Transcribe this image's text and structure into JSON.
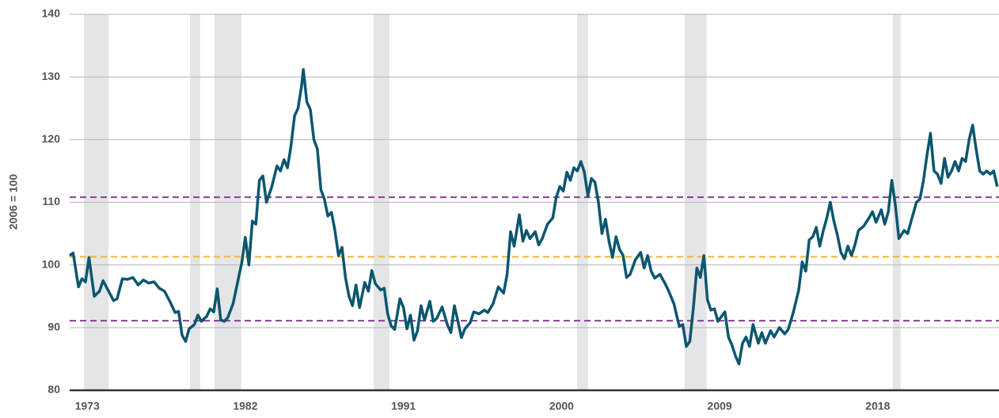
{
  "chart_data": {
    "type": "line",
    "ylabel": "2006 = 100",
    "xlim": [
      1972,
      2024.9
    ],
    "ylim": [
      80,
      140
    ],
    "yticks": [
      80,
      90,
      100,
      110,
      120,
      130,
      140
    ],
    "xticks": [
      1973,
      1982,
      1991,
      2000,
      2009,
      2018
    ],
    "grid": true,
    "shaded_ranges": [
      [
        1972.81,
        1974.21
      ],
      [
        1978.85,
        1979.43
      ],
      [
        1980.24,
        1981.77
      ],
      [
        1989.3,
        1990.2
      ],
      [
        2000.88,
        2001.51
      ],
      [
        2007.0,
        2008.26
      ],
      [
        2018.85,
        2019.3
      ]
    ],
    "shade_color": "#e4e5e7",
    "reference_lines": [
      {
        "value": 110.8,
        "color": "#8a3d96"
      },
      {
        "value": 101.3,
        "color": "#f2b533"
      },
      {
        "value": 91.1,
        "color": "#8a3d96"
      }
    ],
    "x": [
      1972.0,
      1972.2,
      1972.5,
      1972.7,
      1972.9,
      1973.1,
      1973.4,
      1973.7,
      1973.9,
      1974.2,
      1974.5,
      1974.7,
      1975.0,
      1975.3,
      1975.6,
      1975.9,
      1976.2,
      1976.5,
      1976.8,
      1977.1,
      1977.4,
      1977.7,
      1978.0,
      1978.2,
      1978.4,
      1978.6,
      1978.8,
      1979.1,
      1979.3,
      1979.5,
      1979.8,
      1980.0,
      1980.2,
      1980.4,
      1980.6,
      1980.8,
      1981.0,
      1981.3,
      1981.6,
      1981.8,
      1982.0,
      1982.2,
      1982.4,
      1982.6,
      1982.8,
      1983.0,
      1983.2,
      1983.5,
      1983.8,
      1984.0,
      1984.2,
      1984.4,
      1984.6,
      1984.8,
      1985.0,
      1985.2,
      1985.3,
      1985.5,
      1985.7,
      1985.9,
      1986.1,
      1986.3,
      1986.5,
      1986.7,
      1986.9,
      1987.1,
      1987.3,
      1987.5,
      1987.7,
      1987.9,
      1988.1,
      1988.3,
      1988.5,
      1988.8,
      1989.0,
      1989.2,
      1989.4,
      1989.7,
      1989.9,
      1990.1,
      1990.3,
      1990.5,
      1990.8,
      1991.0,
      1991.2,
      1991.4,
      1991.6,
      1991.8,
      1992.0,
      1992.2,
      1992.5,
      1992.7,
      1992.9,
      1993.2,
      1993.5,
      1993.7,
      1993.9,
      1994.1,
      1994.3,
      1994.5,
      1994.8,
      1995.0,
      1995.3,
      1995.6,
      1995.8,
      1996.1,
      1996.4,
      1996.7,
      1996.9,
      1997.1,
      1997.3,
      1997.6,
      1997.8,
      1998.0,
      1998.2,
      1998.5,
      1998.7,
      1998.9,
      1999.2,
      1999.5,
      1999.7,
      1999.9,
      2000.1,
      2000.3,
      2000.5,
      2000.7,
      2000.9,
      2001.1,
      2001.3,
      2001.5,
      2001.7,
      2001.9,
      2002.1,
      2002.3,
      2002.5,
      2002.7,
      2002.9,
      2003.1,
      2003.3,
      2003.5,
      2003.7,
      2003.9,
      2004.2,
      2004.5,
      2004.7,
      2004.9,
      2005.1,
      2005.3,
      2005.6,
      2005.9,
      2006.1,
      2006.4,
      2006.7,
      2006.9,
      2007.1,
      2007.3,
      2007.5,
      2007.7,
      2007.9,
      2008.1,
      2008.3,
      2008.5,
      2008.7,
      2008.9,
      2009.1,
      2009.3,
      2009.5,
      2009.7,
      2009.9,
      2010.1,
      2010.3,
      2010.5,
      2010.7,
      2010.9,
      2011.2,
      2011.4,
      2011.6,
      2011.9,
      2012.1,
      2012.4,
      2012.7,
      2012.9,
      2013.2,
      2013.5,
      2013.7,
      2013.9,
      2014.1,
      2014.3,
      2014.5,
      2014.7,
      2014.9,
      2015.1,
      2015.3,
      2015.5,
      2015.7,
      2015.9,
      2016.1,
      2016.3,
      2016.5,
      2016.7,
      2016.9,
      2017.2,
      2017.5,
      2017.7,
      2017.9,
      2018.2,
      2018.4,
      2018.6,
      2018.8,
      2019.0,
      2019.2,
      2019.5,
      2019.7,
      2019.9,
      2020.2,
      2020.4,
      2020.6,
      2020.8,
      2021.0,
      2021.2,
      2021.4,
      2021.6,
      2021.8,
      2022.0,
      2022.2,
      2022.4,
      2022.6,
      2022.8,
      2023.0,
      2023.2,
      2023.4,
      2023.6,
      2023.8,
      2024.0,
      2024.2,
      2024.4,
      2024.6,
      2024.8
    ],
    "series": [
      {
        "color": "#0b566f",
        "values": [
          101.5,
          101.9,
          96.5,
          97.8,
          97.3,
          101.2,
          95.0,
          95.8,
          97.5,
          95.9,
          94.3,
          94.6,
          97.8,
          97.7,
          98.0,
          96.8,
          97.6,
          97.1,
          97.3,
          96.3,
          95.8,
          94.2,
          92.4,
          92.6,
          88.8,
          87.8,
          89.8,
          90.5,
          92.0,
          91.0,
          91.8,
          93.0,
          92.5,
          96.2,
          91.2,
          91.0,
          91.6,
          93.8,
          97.8,
          100.4,
          104.4,
          100.0,
          107.0,
          106.5,
          113.5,
          114.2,
          110.0,
          112.4,
          115.8,
          115.0,
          116.8,
          115.5,
          119.0,
          123.8,
          125.0,
          128.5,
          131.2,
          126.0,
          124.8,
          120.0,
          118.5,
          112.0,
          110.5,
          107.8,
          108.4,
          105.5,
          101.5,
          102.8,
          98.0,
          95.0,
          93.5,
          96.8,
          93.2,
          97.2,
          95.8,
          99.1,
          97.0,
          96.0,
          96.3,
          92.2,
          90.3,
          89.7,
          94.6,
          93.2,
          89.8,
          92.0,
          88.0,
          89.5,
          93.5,
          91.2,
          94.2,
          91.0,
          91.5,
          93.3,
          90.5,
          89.2,
          93.5,
          91.0,
          88.4,
          89.8,
          90.8,
          92.5,
          92.2,
          92.8,
          92.4,
          93.8,
          96.5,
          95.5,
          98.5,
          105.3,
          103.0,
          108.0,
          103.8,
          105.5,
          104.2,
          105.3,
          103.2,
          104.2,
          106.5,
          107.5,
          110.8,
          112.5,
          111.8,
          114.8,
          113.5,
          115.5,
          115.0,
          116.5,
          114.8,
          111.0,
          113.8,
          113.2,
          110.0,
          105.0,
          107.3,
          103.8,
          101.2,
          104.5,
          102.5,
          101.5,
          98.0,
          98.5,
          100.8,
          102.0,
          99.5,
          101.5,
          99.0,
          97.9,
          98.5,
          97.0,
          95.8,
          93.8,
          90.2,
          90.5,
          87.0,
          87.8,
          93.0,
          99.5,
          98.0,
          101.5,
          94.5,
          92.8,
          93.0,
          91.0,
          91.8,
          92.5,
          88.5,
          87.2,
          85.5,
          84.2,
          87.5,
          88.5,
          87.0,
          90.5,
          87.5,
          89.2,
          87.5,
          89.5,
          88.5,
          90.0,
          89.0,
          89.7,
          92.5,
          96.0,
          100.5,
          99.0,
          104.0,
          104.5,
          106.0,
          103.0,
          105.5,
          107.5,
          110.0,
          107.0,
          104.8,
          102.0,
          101.0,
          103.0,
          101.5,
          103.2,
          105.5,
          106.2,
          107.5,
          108.5,
          106.8,
          108.8,
          106.5,
          108.5,
          113.5,
          109.5,
          104.2,
          105.5,
          105.0,
          107.0,
          110.0,
          110.5,
          113.5,
          117.5,
          121.0,
          115.0,
          114.5,
          113.0,
          117.0,
          114.0,
          115.0,
          116.5,
          115.0,
          117.0,
          116.5,
          120.0,
          122.3,
          118.5,
          115.0,
          114.5,
          115.0,
          114.5,
          115.0,
          112.5
        ]
      }
    ]
  }
}
